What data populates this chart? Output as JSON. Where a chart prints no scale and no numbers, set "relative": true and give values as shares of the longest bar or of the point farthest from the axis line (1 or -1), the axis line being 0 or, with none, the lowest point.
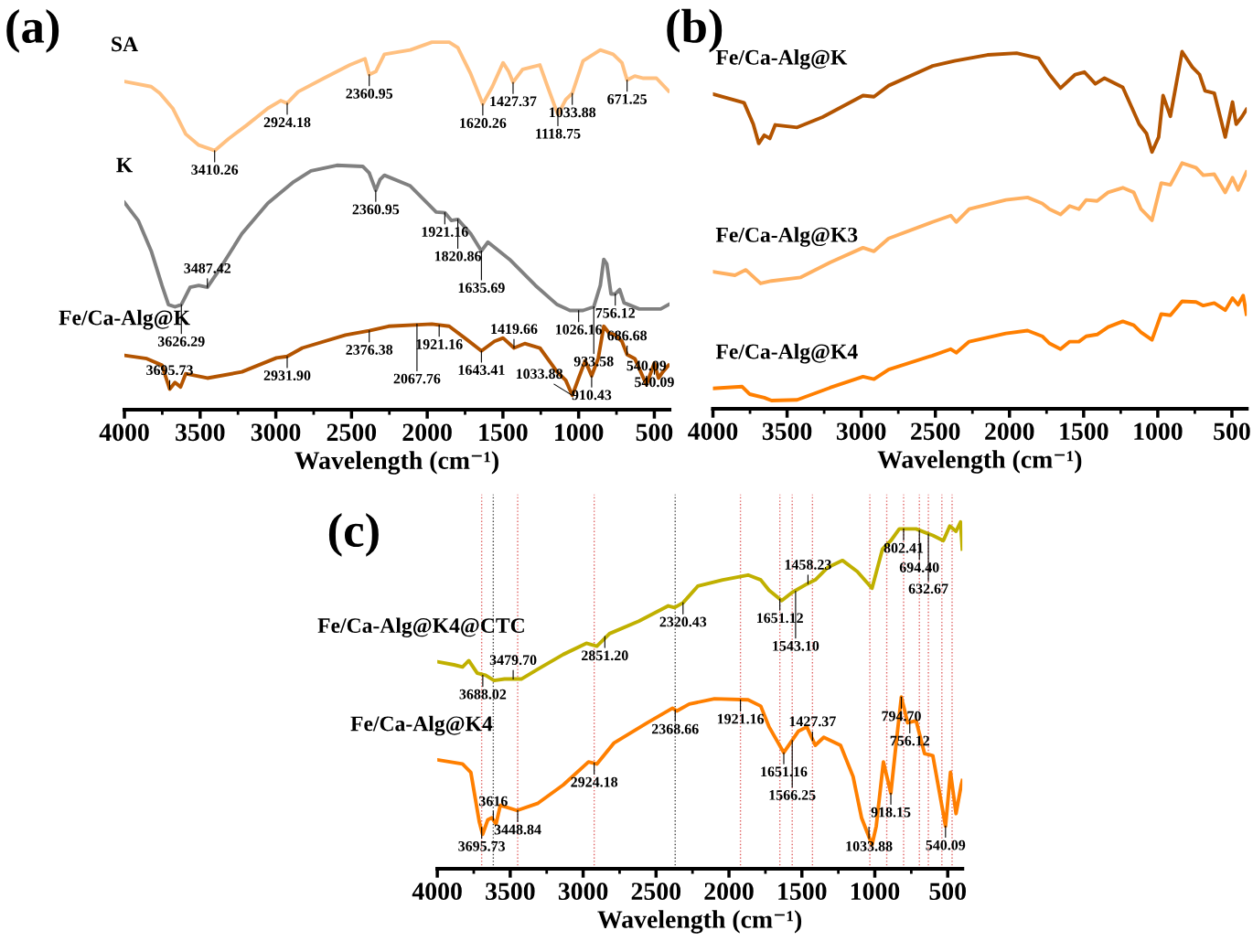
{
  "chart_data": [
    {
      "type": "line",
      "title": "(a)",
      "xlabel": "Wavelength (cm⁻¹)",
      "relative": true,
      "tick_labels": "x",
      "xlim": [
        4000,
        400
      ],
      "xticks": [
        4000,
        3500,
        3000,
        2500,
        2000,
        1500,
        1000,
        500
      ],
      "grid": false,
      "legend": false,
      "series": [
        {
          "name": "SA",
          "color": "#ffc080",
          "x": [
            4000,
            3823,
            3766,
            3681,
            3595,
            3509,
            3404,
            3310,
            3196,
            3053,
            2968,
            2925,
            2853,
            2682,
            2511,
            2411,
            2383,
            2340,
            2283,
            2112,
            1969,
            1855,
            1798,
            1713,
            1633,
            1570,
            1499,
            1462,
            1433,
            1370,
            1256,
            1205,
            1137,
            1085,
            1042,
            971,
            857,
            772,
            714,
            680,
            629,
            572,
            486,
            406
          ],
          "values": [
            0.893,
            0.879,
            0.861,
            0.82,
            0.75,
            0.72,
            0.705,
            0.738,
            0.773,
            0.82,
            0.841,
            0.834,
            0.865,
            0.902,
            0.938,
            0.955,
            0.912,
            0.92,
            0.967,
            0.979,
            1.0,
            1.0,
            0.985,
            0.914,
            0.832,
            0.879,
            0.944,
            0.92,
            0.891,
            0.926,
            0.938,
            0.879,
            0.803,
            0.844,
            0.861,
            0.949,
            0.979,
            0.967,
            0.944,
            0.897,
            0.908,
            0.902,
            0.902,
            0.867
          ]
        },
        {
          "name": "K",
          "color": "#808080",
          "x": [
            4000,
            3909,
            3823,
            3752,
            3709,
            3666,
            3624,
            3566,
            3509,
            3452,
            3367,
            3224,
            3053,
            2882,
            2768,
            2597,
            2426,
            2383,
            2340,
            2312,
            2283,
            2112,
            1941,
            1884,
            1841,
            1798,
            1713,
            1642,
            1599,
            1456,
            1285,
            1142,
            1057,
            971,
            900,
            857,
            834,
            814,
            786,
            758,
            729,
            700,
            600,
            458,
            406
          ],
          "values": [
            0.564,
            0.515,
            0.432,
            0.338,
            0.286,
            0.28,
            0.286,
            0.333,
            0.338,
            0.333,
            0.385,
            0.479,
            0.562,
            0.62,
            0.65,
            0.665,
            0.662,
            0.644,
            0.597,
            0.626,
            0.638,
            0.609,
            0.538,
            0.536,
            0.515,
            0.518,
            0.479,
            0.432,
            0.456,
            0.409,
            0.338,
            0.286,
            0.27,
            0.27,
            0.28,
            0.338,
            0.409,
            0.397,
            0.315,
            0.315,
            0.327,
            0.291,
            0.274,
            0.274,
            0.286
          ]
        },
        {
          "name": "Fe/Ca-Alg@K",
          "color": "#b35400",
          "x": [
            4000,
            3852,
            3752,
            3701,
            3666,
            3629,
            3595,
            3452,
            3224,
            2996,
            2925,
            2825,
            2540,
            2383,
            2255,
            1969,
            1855,
            1742,
            1642,
            1556,
            1499,
            1427,
            1356,
            1256,
            1142,
            1085,
            1042,
            1000,
            957,
            914,
            871,
            834,
            800,
            758,
            714,
            680,
            629,
            552,
            500,
            472,
            444,
            406
          ],
          "values": [
            0.148,
            0.139,
            0.121,
            0.056,
            0.074,
            0.062,
            0.098,
            0.086,
            0.103,
            0.141,
            0.145,
            0.168,
            0.203,
            0.215,
            0.227,
            0.233,
            0.227,
            0.192,
            0.16,
            0.186,
            0.195,
            0.168,
            0.18,
            0.168,
            0.103,
            0.08,
            0.039,
            0.086,
            0.133,
            0.092,
            0.139,
            0.227,
            0.209,
            0.203,
            0.186,
            0.15,
            0.139,
            0.068,
            0.127,
            0.086,
            0.103,
            0.121
          ]
        }
      ],
      "annotations": [
        {
          "text": "3410.26",
          "x": 3404,
          "y": 0.705
        },
        {
          "text": "2924.18",
          "x": 2925,
          "y": 0.834
        },
        {
          "text": "2360.95",
          "x": 2383,
          "y": 0.912
        },
        {
          "text": "1620.26",
          "x": 1633,
          "y": 0.832
        },
        {
          "text": "1427.37",
          "x": 1433,
          "y": 0.891
        },
        {
          "text": "1118.75",
          "x": 1137,
          "y": 0.803
        },
        {
          "text": "1033.88",
          "x": 1042,
          "y": 0.861
        },
        {
          "text": "671.25",
          "x": 680,
          "y": 0.897
        },
        {
          "text": "3626.29",
          "x": 3624,
          "y": 0.286
        },
        {
          "text": "3487.42",
          "x": 3452,
          "y": 0.333
        },
        {
          "text": "2360.95",
          "x": 2340,
          "y": 0.597
        },
        {
          "text": "1921.16",
          "x": 1884,
          "y": 0.536
        },
        {
          "text": "1820.86",
          "x": 1798,
          "y": 0.518
        },
        {
          "text": "1635.69",
          "x": 1642,
          "y": 0.432
        },
        {
          "text": "1026.16",
          "x": 1000,
          "y": 0.27
        },
        {
          "text": "933.58",
          "x": 900,
          "y": 0.28
        },
        {
          "text": "756.12",
          "x": 758,
          "y": 0.315
        },
        {
          "text": "3695.73",
          "x": 3701,
          "y": 0.056
        },
        {
          "text": "2931.90",
          "x": 2925,
          "y": 0.145
        },
        {
          "text": "2376.38",
          "x": 2383,
          "y": 0.215
        },
        {
          "text": "2067.76",
          "x": 2067.76,
          "y": 0.233
        },
        {
          "text": "1921.16",
          "x": 1921.16,
          "y": 0.23
        },
        {
          "text": "1643.41",
          "x": 1642,
          "y": 0.16
        },
        {
          "text": "1419.66",
          "x": 1427,
          "y": 0.168
        },
        {
          "text": "1033.88",
          "x": 1042,
          "y": 0.039
        },
        {
          "text": "910.43",
          "x": 914,
          "y": 0.092
        },
        {
          "text": "686.68",
          "x": 680,
          "y": 0.15
        },
        {
          "text": "540.09",
          "x": 552,
          "y": 0.068
        },
        {
          "text": "540.09",
          "x": 500,
          "y": 0.127
        }
      ]
    },
    {
      "type": "line",
      "title": "(b)",
      "xlabel": "Wavelength (cm⁻¹)",
      "relative": true,
      "tick_labels": "x",
      "xlim": [
        4000,
        400
      ],
      "xticks": [
        4000,
        3500,
        3000,
        2500,
        2000,
        1500,
        1000,
        500
      ],
      "grid": false,
      "legend": false,
      "series": [
        {
          "name": "Fe/Ca-Alg@K",
          "color": "#b35400",
          "x": [
            4000,
            3790,
            3728,
            3691,
            3654,
            3617,
            3580,
            3432,
            3260,
            2988,
            2914,
            2815,
            2519,
            2371,
            2149,
            1952,
            1804,
            1730,
            1656,
            1557,
            1495,
            1421,
            1359,
            1236,
            1125,
            1076,
            1039,
            994,
            964,
            915,
            836,
            767,
            718,
            681,
            619,
            545,
            496,
            471,
            434,
            402
          ],
          "values": [
            0.881,
            0.857,
            0.797,
            0.743,
            0.766,
            0.757,
            0.795,
            0.788,
            0.817,
            0.877,
            0.874,
            0.905,
            0.96,
            0.974,
            0.991,
            0.996,
            0.982,
            0.936,
            0.898,
            0.936,
            0.943,
            0.91,
            0.926,
            0.9,
            0.797,
            0.771,
            0.719,
            0.761,
            0.877,
            0.819,
            1.0,
            0.957,
            0.936,
            0.89,
            0.884,
            0.761,
            0.859,
            0.797,
            0.817,
            0.838
          ]
        },
        {
          "name": "Fe/Ca-Alg@K3",
          "color": "#ffb060",
          "x": [
            4000,
            3852,
            3778,
            3679,
            3605,
            3408,
            3210,
            2988,
            2914,
            2815,
            2519,
            2396,
            2359,
            2272,
            2025,
            1878,
            1779,
            1730,
            1656,
            1594,
            1532,
            1483,
            1409,
            1335,
            1236,
            1162,
            1113,
            1039,
            977,
            915,
            836,
            742,
            693,
            619,
            545,
            496,
            458,
            402
          ],
          "values": [
            0.384,
            0.374,
            0.389,
            0.351,
            0.358,
            0.368,
            0.41,
            0.451,
            0.441,
            0.477,
            0.523,
            0.541,
            0.523,
            0.559,
            0.585,
            0.592,
            0.575,
            0.559,
            0.544,
            0.568,
            0.559,
            0.585,
            0.582,
            0.606,
            0.619,
            0.606,
            0.559,
            0.528,
            0.632,
            0.627,
            0.688,
            0.675,
            0.654,
            0.657,
            0.606,
            0.647,
            0.613,
            0.663
          ]
        },
        {
          "name": "Fe/Ca-Alg@K4",
          "color": "#ff7f00",
          "x": [
            4000,
            3803,
            3753,
            3654,
            3605,
            3432,
            3210,
            2988,
            2914,
            2815,
            2519,
            2396,
            2359,
            2272,
            2025,
            1878,
            1779,
            1730,
            1656,
            1594,
            1532,
            1483,
            1409,
            1335,
            1236,
            1162,
            1113,
            1039,
            977,
            915,
            836,
            742,
            693,
            619,
            545,
            496,
            458,
            424,
            402
          ],
          "values": [
            0.057,
            0.062,
            0.041,
            0.031,
            0.023,
            0.025,
            0.059,
            0.09,
            0.083,
            0.11,
            0.149,
            0.167,
            0.157,
            0.188,
            0.211,
            0.219,
            0.203,
            0.183,
            0.167,
            0.188,
            0.188,
            0.203,
            0.208,
            0.229,
            0.245,
            0.234,
            0.214,
            0.193,
            0.265,
            0.262,
            0.301,
            0.299,
            0.289,
            0.296,
            0.276,
            0.31,
            0.291,
            0.317,
            0.265
          ]
        }
      ]
    },
    {
      "type": "line",
      "title": "(c)",
      "xlabel": "Wavelength (cm⁻¹)",
      "relative": true,
      "tick_labels": "x",
      "xlim": [
        4000,
        400
      ],
      "xticks": [
        4000,
        3500,
        3000,
        2500,
        2000,
        1500,
        1000,
        500
      ],
      "grid": false,
      "legend": false,
      "series": [
        {
          "name": "Fe/Ca-Alg@K4@CTC",
          "color": "#c0b000",
          "x": [
            4000,
            3885,
            3827,
            3784,
            3726,
            3669,
            3611,
            3539,
            3424,
            3309,
            3136,
            2978,
            2906,
            2819,
            2618,
            2416,
            2373,
            2315,
            2214,
            2042,
            1869,
            1782,
            1725,
            1638,
            1566,
            1466,
            1408,
            1322,
            1221,
            1120,
            1019,
            947,
            890,
            832,
            717,
            602,
            530,
            486,
            443,
            412,
            400
          ],
          "values": [
            0.597,
            0.588,
            0.582,
            0.6,
            0.564,
            0.558,
            0.543,
            0.547,
            0.547,
            0.576,
            0.618,
            0.65,
            0.642,
            0.678,
            0.714,
            0.758,
            0.753,
            0.767,
            0.815,
            0.833,
            0.847,
            0.833,
            0.803,
            0.773,
            0.797,
            0.821,
            0.833,
            0.869,
            0.889,
            0.857,
            0.809,
            0.922,
            0.946,
            0.98,
            0.98,
            0.961,
            0.946,
            0.988,
            0.973,
            1.0,
            0.922
          ]
        },
        {
          "name": "Fe/Ca-Alg@K4",
          "color": "#ff7f00",
          "x": [
            4000,
            3827,
            3770,
            3712,
            3689,
            3654,
            3626,
            3597,
            3568,
            3453,
            3309,
            3136,
            2963,
            2906,
            2790,
            2560,
            2387,
            2358,
            2272,
            2099,
            1869,
            1782,
            1725,
            1624,
            1523,
            1466,
            1408,
            1350,
            1235,
            1149,
            1091,
            1019,
            990,
            941,
            890,
            855,
            818,
            775,
            717,
            659,
            602,
            515,
            481,
            443,
            407,
            400
          ],
          "values": [
            0.314,
            0.302,
            0.278,
            0.135,
            0.099,
            0.141,
            0.147,
            0.129,
            0.183,
            0.168,
            0.189,
            0.242,
            0.308,
            0.302,
            0.362,
            0.421,
            0.463,
            0.455,
            0.475,
            0.49,
            0.487,
            0.469,
            0.409,
            0.335,
            0.397,
            0.409,
            0.356,
            0.379,
            0.356,
            0.266,
            0.147,
            0.069,
            0.123,
            0.308,
            0.218,
            0.356,
            0.495,
            0.421,
            0.427,
            0.332,
            0.326,
            0.123,
            0.278,
            0.159,
            0.242,
            0.254
          ]
        }
      ],
      "ref_lines": [
        {
          "axis": "x",
          "value": 3695.73,
          "color": "#e06060",
          "line_style": "dotted"
        },
        {
          "axis": "x",
          "value": 3616,
          "color": "#404040",
          "line_style": "dotted"
        },
        {
          "axis": "x",
          "value": 3448.84,
          "color": "#e06060",
          "line_style": "dotted"
        },
        {
          "axis": "x",
          "value": 2924.18,
          "color": "#e06060",
          "line_style": "dotted"
        },
        {
          "axis": "x",
          "value": 2368.66,
          "color": "#404040",
          "line_style": "dotted"
        },
        {
          "axis": "x",
          "value": 1921.16,
          "color": "#e06060",
          "line_style": "dotted"
        },
        {
          "axis": "x",
          "value": 1651.16,
          "color": "#e06060",
          "line_style": "dotted"
        },
        {
          "axis": "x",
          "value": 1566.25,
          "color": "#e06060",
          "line_style": "dotted"
        },
        {
          "axis": "x",
          "value": 1427.37,
          "color": "#e06060",
          "line_style": "dotted"
        },
        {
          "axis": "x",
          "value": 1033.88,
          "color": "#e06060",
          "line_style": "dotted"
        },
        {
          "axis": "x",
          "value": 918.15,
          "color": "#e06060",
          "line_style": "dotted"
        },
        {
          "axis": "x",
          "value": 802.41,
          "color": "#e06060",
          "line_style": "dotted"
        },
        {
          "axis": "x",
          "value": 694.4,
          "color": "#e06060",
          "line_style": "dotted"
        },
        {
          "axis": "x",
          "value": 632.67,
          "color": "#e06060",
          "line_style": "dotted"
        },
        {
          "axis": "x",
          "value": 540.09,
          "color": "#e06060",
          "line_style": "dotted"
        },
        {
          "axis": "x",
          "value": 470,
          "color": "#e06060",
          "line_style": "dotted"
        }
      ],
      "annotations": [
        {
          "text": "3688.02",
          "x": 3688.02,
          "y": 0.558
        },
        {
          "text": "3479.70",
          "x": 3479.7,
          "y": 0.547
        },
        {
          "text": "2851.20",
          "x": 2851.2,
          "y": 0.67
        },
        {
          "text": "2320.43",
          "x": 2315,
          "y": 0.767
        },
        {
          "text": "1651.12",
          "x": 1651.12,
          "y": 0.778
        },
        {
          "text": "1543.10",
          "x": 1543.1,
          "y": 0.8
        },
        {
          "text": "1458.23",
          "x": 1458.23,
          "y": 0.822
        },
        {
          "text": "802.41",
          "x": 802.41,
          "y": 0.98
        },
        {
          "text": "694.40",
          "x": 694.4,
          "y": 0.975
        },
        {
          "text": "632.67",
          "x": 632.67,
          "y": 0.965
        },
        {
          "text": "3695.73",
          "x": 3695.73,
          "y": 0.12
        },
        {
          "text": "3616",
          "x": 3616,
          "y": 0.14
        },
        {
          "text": "3448.84",
          "x": 3448.84,
          "y": 0.168
        },
        {
          "text": "2924.18",
          "x": 2924.18,
          "y": 0.305
        },
        {
          "text": "2368.66",
          "x": 2368.66,
          "y": 0.458
        },
        {
          "text": "1921.16",
          "x": 1921.16,
          "y": 0.487
        },
        {
          "text": "1651.16",
          "x": 1624,
          "y": 0.335
        },
        {
          "text": "1566.25",
          "x": 1566.25,
          "y": 0.37
        },
        {
          "text": "1427.37",
          "x": 1427.37,
          "y": 0.37
        },
        {
          "text": "1033.88",
          "x": 1040,
          "y": 0.12
        },
        {
          "text": "918.15",
          "x": 890,
          "y": 0.218
        },
        {
          "text": "794.70",
          "x": 818,
          "y": 0.495
        },
        {
          "text": "756.12",
          "x": 760,
          "y": 0.424
        },
        {
          "text": "540.09",
          "x": 515,
          "y": 0.123
        }
      ]
    }
  ]
}
